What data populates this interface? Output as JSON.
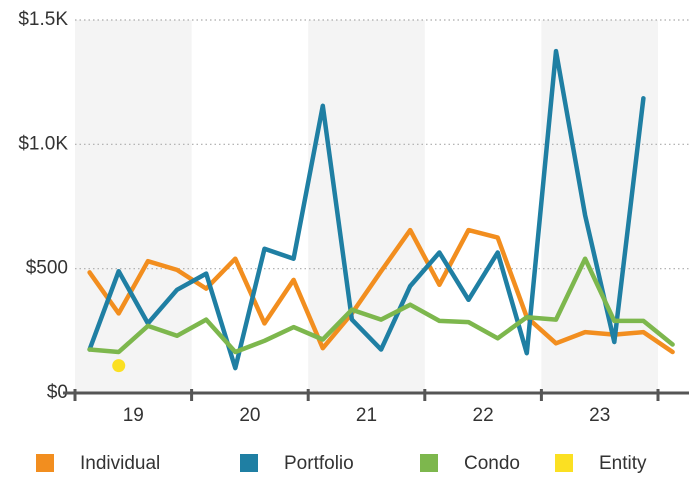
{
  "chart_data": {
    "type": "line",
    "year_bands": [
      "19",
      "20",
      "21",
      "22",
      "23"
    ],
    "points_per_band": 4,
    "series": [
      {
        "name": "Individual",
        "color": "#f28e1f",
        "values": [
          485,
          320,
          530,
          495,
          420,
          540,
          280,
          455,
          180,
          320,
          490,
          655,
          435,
          655,
          625,
          305,
          200,
          245,
          235,
          245,
          165
        ]
      },
      {
        "name": "Portfolio",
        "color": "#1f7fa3",
        "values": [
          175,
          490,
          280,
          415,
          480,
          100,
          580,
          540,
          1155,
          295,
          175,
          430,
          565,
          375,
          565,
          160,
          1375,
          715,
          205,
          1185,
          null
        ]
      },
      {
        "name": "Condo",
        "color": "#7db74d",
        "values": [
          175,
          165,
          270,
          230,
          295,
          165,
          210,
          265,
          215,
          335,
          295,
          355,
          290,
          285,
          220,
          305,
          295,
          540,
          290,
          290,
          195
        ]
      },
      {
        "name": "Entity",
        "color": "#fbe022",
        "values": [
          null,
          110,
          null,
          null,
          null,
          null,
          null,
          null,
          null,
          null,
          null,
          null,
          null,
          null,
          null,
          null,
          null,
          null,
          null,
          null,
          null
        ]
      }
    ],
    "ylim": [
      0,
      1500
    ],
    "yticks": [
      {
        "value": 0,
        "label": "$0"
      },
      {
        "value": 500,
        "label": "$500"
      },
      {
        "value": 1000,
        "label": "$1.0K"
      },
      {
        "value": 1500,
        "label": "$1.5K"
      }
    ],
    "grid": true,
    "legend": "bottom"
  }
}
